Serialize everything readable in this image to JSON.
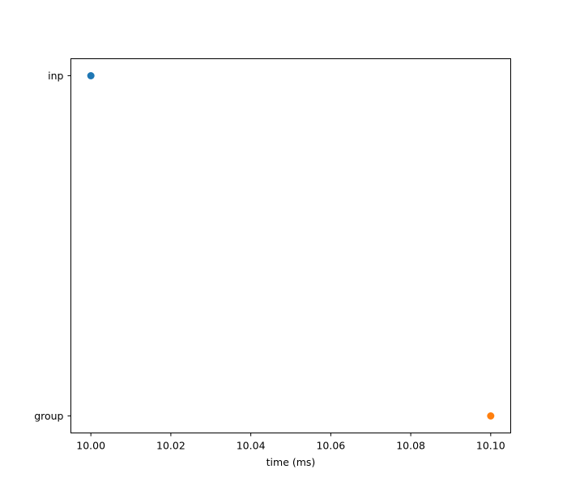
{
  "chart_data": {
    "type": "scatter",
    "title": "",
    "xlabel": "time (ms)",
    "ylabel": "",
    "xlim": [
      9.995,
      10.105
    ],
    "x_ticks": [
      10.0,
      10.02,
      10.04,
      10.06,
      10.08,
      10.1
    ],
    "x_tick_labels": [
      "10.00",
      "10.02",
      "10.04",
      "10.06",
      "10.08",
      "10.10"
    ],
    "y_categories": [
      "group",
      "inp"
    ],
    "grid": false,
    "legend": "none",
    "series": [
      {
        "x": [
          10.0
        ],
        "y": [
          "inp"
        ],
        "color": "#1f77b4"
      },
      {
        "x": [
          10.1
        ],
        "y": [
          "group"
        ],
        "color": "#ff7f0e"
      }
    ]
  }
}
